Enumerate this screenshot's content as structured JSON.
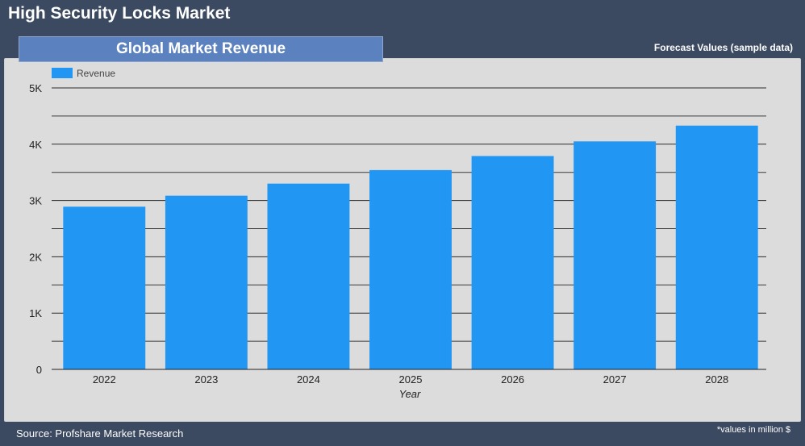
{
  "header": {
    "title": "High Security Locks Market",
    "banner": "Global Market Revenue",
    "forecast_note": "Forecast Values (sample data)"
  },
  "footer": {
    "source": "Source: Profshare Market Research",
    "units_note": "*values in million $"
  },
  "colors": {
    "bar": "#2196f3",
    "background": "#3b4a61",
    "panel": "#dcdcdc"
  },
  "chart_data": {
    "type": "bar",
    "categories": [
      "2022",
      "2023",
      "2024",
      "2025",
      "2026",
      "2027",
      "2028"
    ],
    "series": [
      {
        "name": "Revenue",
        "values": [
          2890,
          3085,
          3300,
          3540,
          3790,
          4050,
          4330
        ]
      }
    ],
    "xlabel": "Year",
    "ylabel": "",
    "ylim": [
      0,
      5000
    ],
    "yticks": [
      0,
      1000,
      2000,
      3000,
      4000,
      5000
    ],
    "ytick_labels": [
      "0",
      "1K",
      "2K",
      "3K",
      "4K",
      "5K"
    ],
    "grid": true,
    "legend_position": "top-left"
  }
}
